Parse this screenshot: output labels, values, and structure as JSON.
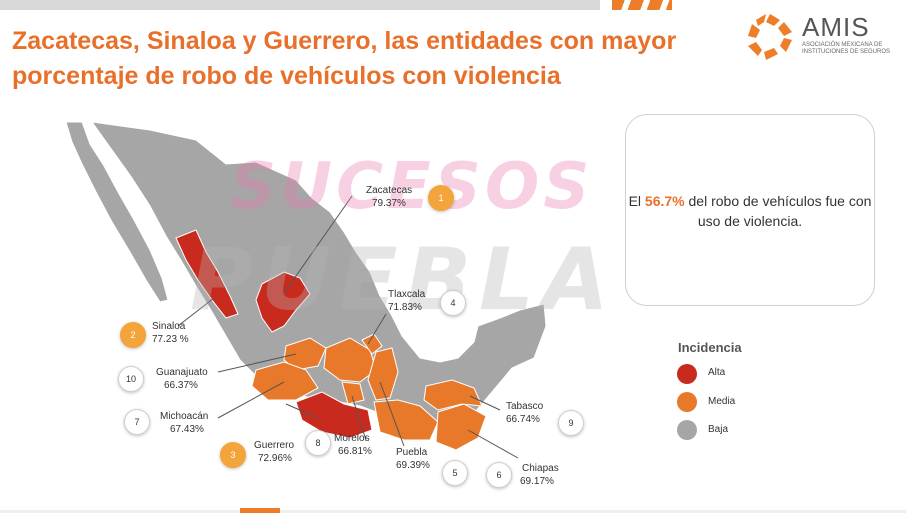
{
  "title": "Zacatecas, Sinaloa y Guerrero, las entidades con mayor porcentaje de robo de vehículos con violencia",
  "logo": {
    "name": "AMIS",
    "subtitle": "ASOCIACIÓN MEXICANA DE INSTITUCIONES DE SEGUROS"
  },
  "info": {
    "prefix": "El ",
    "highlight": "56.7%",
    "suffix": " del robo de vehículos fue con uso de violencia."
  },
  "legend": {
    "title": "Incidencia",
    "items": [
      {
        "label": "Alta",
        "color": "#c92a1e"
      },
      {
        "label": "Media",
        "color": "#e8782a"
      },
      {
        "label": "Baja",
        "color": "#a6a6a6"
      }
    ]
  },
  "states": [
    {
      "rank": "1",
      "name": "Zacatecas",
      "value": "79.37%",
      "level": "Alta"
    },
    {
      "rank": "2",
      "name": "Sinaloa",
      "value": "77.23 %",
      "level": "Alta"
    },
    {
      "rank": "3",
      "name": "Guerrero",
      "value": "72.96%",
      "level": "Alta"
    },
    {
      "rank": "4",
      "name": "Tlaxcala",
      "value": "71.83%",
      "level": "Media"
    },
    {
      "rank": "5",
      "name": "Puebla",
      "value": "69.39%",
      "level": "Media"
    },
    {
      "rank": "6",
      "name": "Chiapas",
      "value": "69.17%",
      "level": "Media"
    },
    {
      "rank": "7",
      "name": "Michoacán",
      "value": "67.43%",
      "level": "Media"
    },
    {
      "rank": "8",
      "name": "Morelos",
      "value": "66.81%",
      "level": "Media"
    },
    {
      "rank": "9",
      "name": "Tabasco",
      "value": "66.74%",
      "level": "Media"
    },
    {
      "rank": "10",
      "name": "Guanajuato",
      "value": "66.37%",
      "level": "Media"
    }
  ],
  "watermark": {
    "line1": "SUCESOS",
    "line2": "PUEBLA"
  },
  "colors": {
    "accent": "#e8702a",
    "alta": "#c92a1e",
    "media": "#e8782a",
    "baja": "#a6a6a6"
  }
}
